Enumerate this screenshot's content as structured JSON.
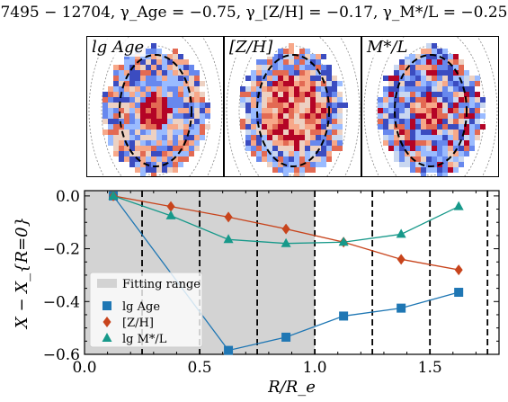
{
  "title": "7495 − 12704,  γ_Age = −0.75,  γ_[Z/H] = −0.17,  γ_M*/L = −0.25",
  "maps": [
    {
      "label": "lg Age",
      "palette": "age"
    },
    {
      "label": "[Z/H]",
      "palette": "zh"
    },
    {
      "label": "M*/L",
      "palette": "ml"
    }
  ],
  "chart_data": {
    "type": "line",
    "xlabel": "R/R_e",
    "ylabel": "X − X_{R=0}",
    "xlim": [
      0.0,
      1.8
    ],
    "ylim": [
      -0.6,
      0.02
    ],
    "xticks": [
      "0.0",
      "0.5",
      "1.0",
      "1.5"
    ],
    "yticks": [
      "0.0",
      "−0.2",
      "−0.4",
      "−0.6"
    ],
    "fitting_range": [
      0.0,
      1.0
    ],
    "vlines": [
      0.25,
      0.5,
      0.75,
      1.0,
      1.25,
      1.5,
      1.75
    ],
    "legend_position": "lower-left",
    "series": [
      {
        "name": "lg Age",
        "marker": "square",
        "color": "#1f77b4",
        "x": [
          0.125,
          0.625,
          0.875,
          1.125,
          1.375,
          1.625
        ],
        "y": [
          0.0,
          -0.585,
          -0.535,
          -0.455,
          -0.425,
          -0.365
        ]
      },
      {
        "name": "[Z/H]",
        "marker": "diamond",
        "color": "#c8441c",
        "x": [
          0.125,
          0.375,
          0.625,
          0.875,
          1.125,
          1.375,
          1.625
        ],
        "y": [
          0.0,
          -0.04,
          -0.08,
          -0.125,
          -0.175,
          -0.24,
          -0.28
        ]
      },
      {
        "name": "lg M*/L",
        "marker": "triangle",
        "color": "#17998a",
        "x": [
          0.125,
          0.375,
          0.625,
          0.875,
          1.125,
          1.375,
          1.625
        ],
        "y": [
          0.0,
          -0.075,
          -0.165,
          -0.18,
          -0.175,
          -0.145,
          -0.04
        ]
      }
    ],
    "legend": {
      "fitting_label": "Fitting range"
    }
  }
}
